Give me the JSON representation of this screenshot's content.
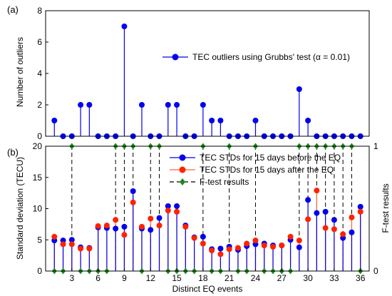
{
  "chart_data": [
    {
      "panel_label": "(a)",
      "type": "stem",
      "ylabel": "Number of outliers",
      "xlim": [
        0,
        37
      ],
      "ylim": [
        0,
        8
      ],
      "yticks": [
        0,
        2,
        4,
        6,
        8
      ],
      "x": [
        1,
        2,
        3,
        4,
        5,
        6,
        7,
        8,
        9,
        10,
        11,
        12,
        13,
        14,
        15,
        16,
        17,
        18,
        19,
        20,
        21,
        22,
        23,
        24,
        25,
        26,
        27,
        28,
        29,
        30,
        31,
        32,
        33,
        34,
        35,
        36
      ],
      "series": [
        {
          "name": "TEC outliers using Grubbs' test (α = 0.01)",
          "color": "#0000ee",
          "values": [
            1,
            0,
            0,
            2,
            2,
            0,
            0,
            0,
            7,
            0,
            2,
            0,
            0,
            2,
            2,
            0,
            0,
            2,
            1,
            1,
            0,
            0,
            0,
            1,
            0,
            0,
            0,
            0,
            3,
            1,
            0,
            0,
            0,
            0,
            0,
            0
          ]
        }
      ],
      "legend_position": "center-right",
      "grid": false
    },
    {
      "panel_label": "(b)",
      "type": "stem",
      "xlabel": "Distinct EQ events",
      "ylabel": "Standard deviation (TECU)",
      "ylabel_right": "F-test results",
      "xlim": [
        0,
        37
      ],
      "xticks": [
        3,
        6,
        9,
        12,
        15,
        18,
        21,
        24,
        27,
        30,
        33,
        36
      ],
      "ylim": [
        0,
        20
      ],
      "yticks": [
        0,
        5,
        10,
        15,
        20
      ],
      "ylim_right": [
        0,
        1
      ],
      "yticks_right": [
        0,
        1
      ],
      "x": [
        1,
        2,
        3,
        4,
        5,
        6,
        7,
        8,
        9,
        10,
        11,
        12,
        13,
        14,
        15,
        16,
        17,
        18,
        19,
        20,
        21,
        22,
        23,
        24,
        25,
        26,
        27,
        28,
        29,
        30,
        31,
        32,
        33,
        34,
        35,
        36
      ],
      "series": [
        {
          "name": "TEC STDs for 15 days before the EQ",
          "color": "#0000ee",
          "values": [
            4.9,
            4.9,
            5.0,
            3.8,
            3.7,
            7.0,
            6.9,
            6.8,
            7.1,
            12.8,
            6.8,
            6.6,
            8.5,
            10.4,
            10.4,
            7.3,
            5.4,
            5.5,
            3.5,
            3.6,
            3.9,
            3.4,
            4.0,
            4.3,
            4.4,
            4.1,
            4.1,
            5.0,
            3.8,
            11.4,
            9.3,
            9.5,
            8.2,
            5.3,
            6.2,
            10.3
          ]
        },
        {
          "name": "TEC STDs for 15 days after the EQ",
          "color": "#ff2200",
          "values": [
            5.5,
            4.3,
            4.3,
            3.6,
            3.6,
            7.2,
            7.3,
            8.2,
            5.8,
            11.0,
            7.1,
            8.4,
            7.3,
            9.7,
            9.5,
            7.1,
            5.3,
            4.4,
            3.3,
            2.7,
            3.5,
            3.7,
            4.4,
            4.9,
            4.1,
            3.9,
            4.1,
            5.5,
            4.9,
            8.3,
            12.9,
            6.9,
            6.7,
            5.9,
            8.6,
            9.5
          ]
        },
        {
          "name": "F-test results",
          "color": "#1a8a1a",
          "axis": "right",
          "values": [
            0,
            0,
            1,
            0,
            0,
            0,
            0,
            1,
            1,
            1,
            0,
            1,
            1,
            0,
            0,
            0,
            0,
            1,
            0,
            0,
            1,
            0,
            0,
            1,
            0,
            0,
            0,
            0,
            1,
            1,
            1,
            1,
            1,
            1,
            1,
            0
          ]
        }
      ],
      "legend_position": "top-right",
      "grid": false
    }
  ]
}
